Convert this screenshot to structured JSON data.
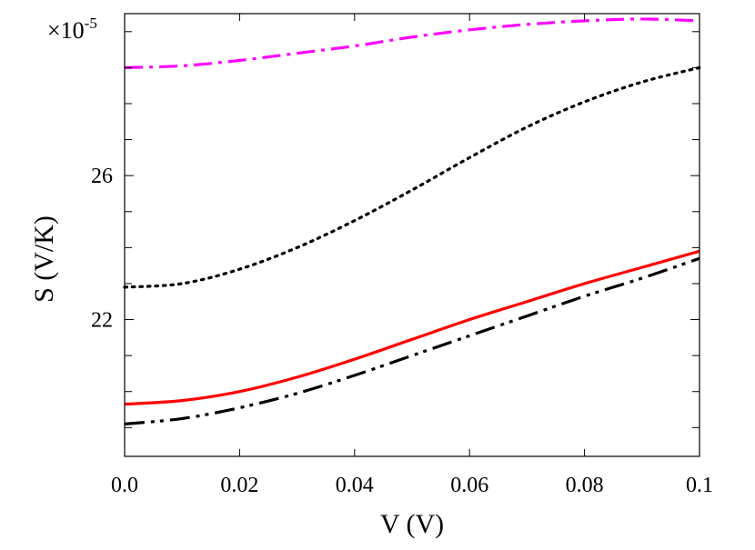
{
  "chart_data": {
    "type": "line",
    "title": "",
    "xlabel": "V (V)",
    "ylabel": "S (V/K)",
    "y_multiplier": "×10",
    "y_multiplier_exponent": "-5",
    "xlim": [
      0.0,
      0.1
    ],
    "ylim": [
      18.2,
      30.5
    ],
    "x_ticks": [
      0.0,
      0.02,
      0.04,
      0.06,
      0.08,
      0.1
    ],
    "x_tick_labels": [
      "0.0",
      "0.02",
      "0.04",
      "0.06",
      "0.08",
      "0.1"
    ],
    "y_ticks_labeled": [
      22,
      26
    ],
    "y_tick_labels": [
      "22",
      "26"
    ],
    "y_ticks_minor": [
      19,
      20,
      21,
      23,
      24,
      25,
      27,
      28,
      29,
      30
    ],
    "grid": false,
    "series": [
      {
        "color": "#ff00ff",
        "style": "dash-dot",
        "x": [
          0.0,
          0.01,
          0.02,
          0.03,
          0.04,
          0.05,
          0.06,
          0.07,
          0.08,
          0.09,
          0.1
        ],
        "y": [
          29.0,
          29.05,
          29.2,
          29.4,
          29.6,
          29.85,
          30.05,
          30.2,
          30.3,
          30.35,
          30.3
        ]
      },
      {
        "color": "#000000",
        "style": "dotted",
        "x": [
          0.0,
          0.01,
          0.02,
          0.03,
          0.04,
          0.05,
          0.06,
          0.07,
          0.08,
          0.09,
          0.1
        ],
        "y": [
          22.9,
          23.0,
          23.4,
          24.0,
          24.75,
          25.6,
          26.5,
          27.35,
          28.05,
          28.6,
          29.0
        ]
      },
      {
        "color": "#ff0000",
        "style": "solid",
        "x": [
          0.0,
          0.01,
          0.02,
          0.03,
          0.04,
          0.05,
          0.06,
          0.07,
          0.08,
          0.09,
          0.1
        ],
        "y": [
          19.65,
          19.75,
          20.0,
          20.4,
          20.9,
          21.45,
          22.0,
          22.5,
          23.0,
          23.45,
          23.9
        ]
      },
      {
        "color": "#000000",
        "style": "dash-dot-dot",
        "x": [
          0.0,
          0.01,
          0.02,
          0.03,
          0.04,
          0.05,
          0.06,
          0.07,
          0.08,
          0.09,
          0.1
        ],
        "y": [
          19.1,
          19.25,
          19.55,
          19.95,
          20.45,
          21.0,
          21.55,
          22.1,
          22.65,
          23.15,
          23.7
        ]
      }
    ]
  }
}
